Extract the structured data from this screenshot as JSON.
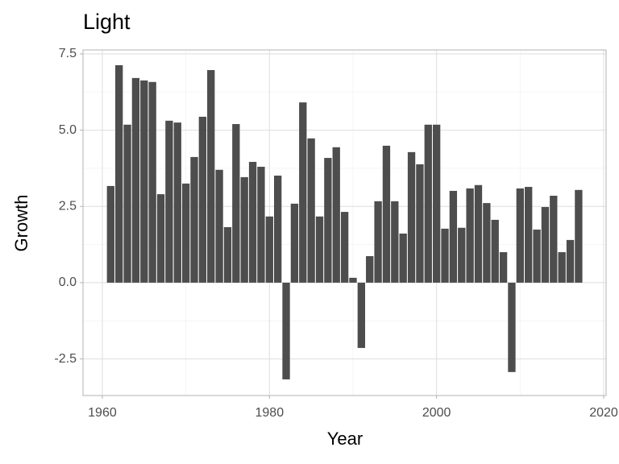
{
  "chart_data": {
    "type": "bar",
    "title": "Light",
    "x_label": "Year",
    "y_label": "Growth",
    "x": [
      1961,
      1962,
      1963,
      1964,
      1965,
      1966,
      1967,
      1968,
      1969,
      1970,
      1971,
      1972,
      1973,
      1974,
      1975,
      1976,
      1977,
      1978,
      1979,
      1980,
      1981,
      1982,
      1983,
      1984,
      1985,
      1986,
      1987,
      1988,
      1989,
      1990,
      1991,
      1992,
      1993,
      1994,
      1995,
      1996,
      1997,
      1998,
      1999,
      2000,
      2001,
      2002,
      2003,
      2004,
      2005,
      2006,
      2007,
      2008,
      2009,
      2010,
      2011,
      2012,
      2013,
      2014,
      2015,
      2016,
      2017
    ],
    "values": [
      3.17,
      7.13,
      5.18,
      6.71,
      6.63,
      6.58,
      2.9,
      5.31,
      5.25,
      3.25,
      4.12,
      5.44,
      6.97,
      3.7,
      1.82,
      5.2,
      3.46,
      3.96,
      3.8,
      2.17,
      3.51,
      -3.17,
      2.59,
      5.91,
      4.73,
      2.17,
      4.09,
      4.44,
      2.32,
      0.16,
      -2.14,
      0.87,
      2.67,
      4.49,
      2.67,
      1.61,
      4.28,
      3.88,
      5.18,
      5.18,
      1.77,
      3.01,
      1.8,
      3.09,
      3.2,
      2.61,
      2.06,
      1.0,
      -2.93,
      3.09,
      3.14,
      1.74,
      2.48,
      2.85,
      1.0,
      1.4,
      3.04
    ],
    "color": "#4d4d4d",
    "xlim": [
      1957.69,
      2020.29
    ],
    "xticks": [
      1960,
      1980,
      2000,
      2020
    ],
    "ylim": [
      -3.7,
      7.63
    ],
    "yticks": [
      -2.5,
      {
        "value": 0,
        "label": "0.0"
      },
      2.5,
      {
        "value": 5,
        "label": "5.0"
      },
      7.5
    ],
    "grid": true
  }
}
